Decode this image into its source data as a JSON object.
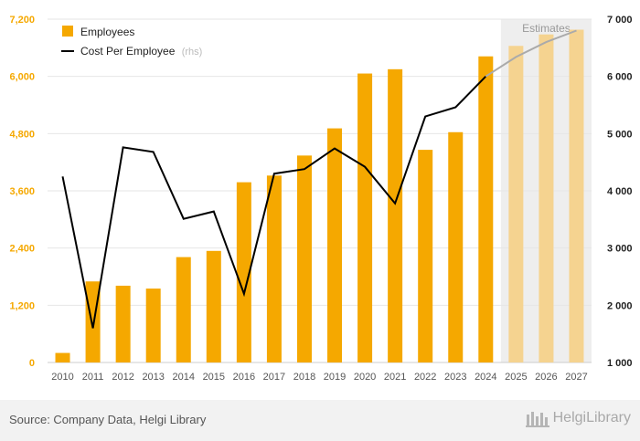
{
  "chart_data": {
    "type": "bar+line",
    "title": "",
    "categories": [
      "2010",
      "2011",
      "2012",
      "2013",
      "2014",
      "2015",
      "2016",
      "2017",
      "2018",
      "2019",
      "2020",
      "2021",
      "2022",
      "2023",
      "2024",
      "2025",
      "2026",
      "2027"
    ],
    "estimate_categories": [
      "2025",
      "2026",
      "2027"
    ],
    "estimates_label": "Estimates",
    "series": [
      {
        "name": "Employees",
        "axis": "left",
        "type": "bar",
        "color": "#F5A800",
        "estimate_color": "#F5D390",
        "values": [
          200,
          1700,
          1610,
          1550,
          2210,
          2340,
          3780,
          3920,
          4340,
          4910,
          6060,
          6150,
          4460,
          4830,
          6420,
          6640,
          6880,
          6980
        ]
      },
      {
        "name": "Cost Per Employee",
        "name_suffix": "(rhs)",
        "axis": "right",
        "type": "line",
        "color": "#000000",
        "estimate_color": "#aaaaaa",
        "values": [
          4250,
          1600,
          4760,
          4680,
          3510,
          3640,
          2200,
          4300,
          4380,
          4740,
          4420,
          3780,
          5300,
          5460,
          6000,
          6340,
          6600,
          6800
        ]
      }
    ],
    "y_left": {
      "ylim": [
        0,
        7200
      ],
      "ticks": [
        0,
        1200,
        2400,
        3600,
        4800,
        6000,
        7200
      ],
      "tick_labels": [
        "0",
        "1,200",
        "2,400",
        "3,600",
        "4,800",
        "6,000",
        "7,200"
      ]
    },
    "y_right": {
      "ylim": [
        1000,
        7000
      ],
      "ticks": [
        1000,
        2000,
        3000,
        4000,
        5000,
        6000,
        7000
      ],
      "tick_labels": [
        "1 000",
        "2 000",
        "3 000",
        "4 000",
        "5 000",
        "6 000",
        "7 000"
      ]
    },
    "grid": true,
    "legend_position": "top-left"
  },
  "footer": {
    "source": "Source: Company Data, Helgi Library",
    "brand": "HelgiLibrary"
  }
}
